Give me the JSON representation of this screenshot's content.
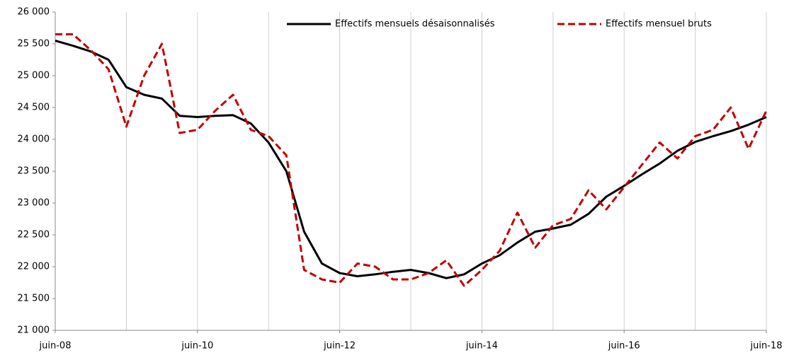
{
  "chart_data": {
    "type": "line",
    "categories": [
      "juin-08",
      null,
      null,
      null,
      null,
      null,
      null,
      null,
      "juin-10",
      null,
      null,
      null,
      null,
      null,
      null,
      null,
      "juin-12",
      null,
      null,
      null,
      null,
      null,
      null,
      null,
      "juin-14",
      null,
      null,
      null,
      null,
      null,
      null,
      null,
      "juin-16",
      null,
      null,
      null,
      null,
      null,
      null,
      null,
      "juin-18"
    ],
    "series": [
      {
        "name": "Effectifs mensuels désaisonnalisés",
        "color": "#000000",
        "dash": false,
        "values": [
          25550,
          25470,
          25380,
          25250,
          24820,
          24700,
          24640,
          24370,
          24350,
          24370,
          24380,
          24250,
          23950,
          23500,
          22550,
          22050,
          21900,
          21850,
          21880,
          21920,
          21950,
          21900,
          21820,
          21880,
          22050,
          22180,
          22380,
          22550,
          22600,
          22660,
          22830,
          23100,
          23270,
          23450,
          23620,
          23820,
          23960,
          24050,
          24130,
          24230,
          24350
        ]
      },
      {
        "name": "Effectifs mensuel bruts",
        "color": "#c00000",
        "dash": true,
        "values": [
          25650,
          25650,
          25400,
          25100,
          24200,
          25000,
          25500,
          24100,
          24150,
          24450,
          24700,
          24150,
          24050,
          23750,
          21950,
          21800,
          21750,
          22050,
          22000,
          21800,
          21800,
          21900,
          22100,
          21700,
          21950,
          22250,
          22850,
          22300,
          22650,
          22750,
          23200,
          22900,
          23250,
          23600,
          23950,
          23700,
          24050,
          24150,
          24500,
          23850,
          24450
        ]
      }
    ],
    "ylim": [
      21000,
      26000
    ],
    "yticks": [
      {
        "value": 21000,
        "label": "21 000"
      },
      {
        "value": 21500,
        "label": "21 500"
      },
      {
        "value": 22000,
        "label": "22 000"
      },
      {
        "value": 22500,
        "label": "22 500"
      },
      {
        "value": 23000,
        "label": "23 000"
      },
      {
        "value": 23500,
        "label": "23 500"
      },
      {
        "value": 24000,
        "label": "24 000"
      },
      {
        "value": 24500,
        "label": "24 500"
      },
      {
        "value": 25000,
        "label": "25 000"
      },
      {
        "value": 25500,
        "label": "25 500"
      },
      {
        "value": 26000,
        "label": "26 000"
      }
    ],
    "grid": "x"
  }
}
